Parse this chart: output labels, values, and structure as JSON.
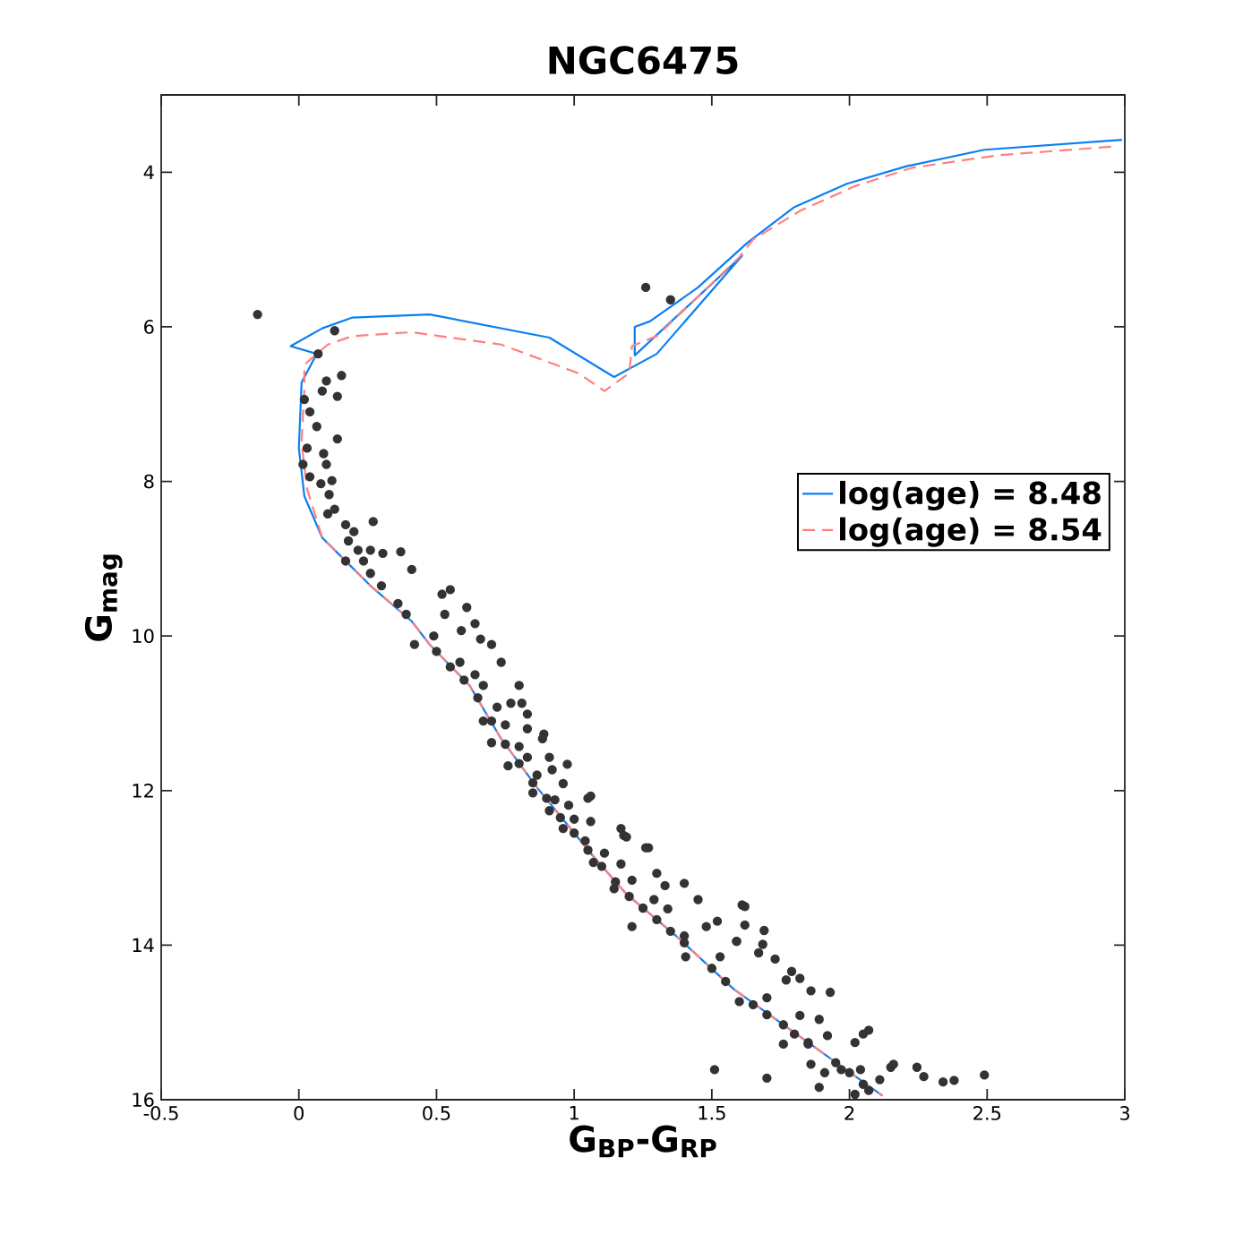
{
  "chart_data": {
    "type": "scatter",
    "title": "NGC6475",
    "xlabel": "G$_{BP}$-G$_{RP}$",
    "ylabel": "G$_{mag}$",
    "xlim": [
      -0.5,
      3
    ],
    "ylim": [
      16,
      3
    ],
    "xticks": [
      -0.5,
      0,
      0.5,
      1,
      1.5,
      2,
      2.5,
      3
    ],
    "yticks": [
      4,
      6,
      8,
      10,
      12,
      14,
      16
    ],
    "legend": "right",
    "marker": "circle",
    "series": [
      {
        "color": "#333333",
        "x": [
          -0.15,
          0.13,
          0.07,
          0.155,
          0.1,
          0.085,
          0.14,
          0.02,
          0.04,
          0.065,
          0.14,
          0.03,
          0.09,
          0.1,
          0.015,
          0.04,
          0.12,
          0.08,
          0.11,
          0.13,
          0.105,
          0.27,
          0.17,
          0.2,
          0.18,
          0.215,
          0.26,
          0.305,
          0.37,
          0.235,
          0.41,
          0.17,
          0.26,
          0.3,
          0.52,
          0.55,
          0.61,
          0.53,
          0.36,
          0.39,
          0.64,
          0.59,
          0.42,
          0.49,
          0.7,
          0.66,
          0.735,
          0.585,
          0.64,
          0.8,
          0.67,
          0.77,
          0.81,
          0.72,
          0.83,
          0.67,
          0.75,
          0.83,
          0.89,
          0.885,
          0.7,
          0.8,
          0.83,
          0.91,
          0.975,
          0.92,
          0.76,
          0.865,
          0.96,
          0.85,
          0.93,
          1.05,
          0.98,
          0.91,
          1.06,
          1.0,
          0.96,
          1.17,
          1.18,
          1.27,
          1.04,
          1.11,
          1.07,
          1.17,
          1.21,
          1.3,
          1.33,
          1.4,
          1.145,
          1.29,
          1.45,
          1.61,
          1.52,
          1.21,
          1.34,
          1.4,
          1.59,
          1.48,
          1.26,
          1.62,
          1.62,
          1.69,
          1.59,
          1.685,
          1.67,
          1.73,
          1.405,
          1.53,
          1.79,
          1.82,
          1.77,
          1.86,
          1.93,
          1.6,
          1.7,
          1.82,
          1.89,
          1.76,
          1.92,
          1.76,
          2.02,
          2.07,
          2.05,
          1.85,
          1.86,
          1.91,
          1.97,
          2.04,
          2.11,
          2.15,
          2.16,
          2.245,
          2.27,
          2.34,
          2.38,
          2.49,
          1.51,
          1.7,
          1.89,
          2.02,
          2.07,
          1.06,
          1.19,
          1.26,
          1.35,
          0.5,
          0.55,
          0.6,
          0.65,
          0.7,
          0.75,
          0.8,
          0.85,
          0.9,
          0.95,
          1.0,
          1.05,
          1.1,
          1.15,
          1.2,
          1.25,
          1.3,
          1.35,
          1.4,
          1.5,
          1.55,
          1.65,
          1.7,
          1.8,
          1.85,
          1.95,
          2.0,
          2.05
        ],
        "values": [
          5.84,
          6.05,
          6.35,
          6.63,
          6.7,
          6.83,
          6.9,
          6.94,
          7.1,
          7.29,
          7.45,
          7.57,
          7.64,
          7.78,
          7.78,
          7.94,
          7.99,
          8.03,
          8.17,
          8.36,
          8.42,
          8.52,
          8.56,
          8.65,
          8.77,
          8.89,
          8.89,
          8.93,
          8.91,
          9.03,
          9.14,
          9.03,
          9.19,
          9.35,
          9.46,
          9.4,
          9.63,
          9.72,
          9.58,
          9.72,
          9.84,
          9.93,
          10.11,
          10.0,
          10.11,
          10.04,
          10.34,
          10.34,
          10.5,
          10.64,
          10.64,
          10.87,
          10.87,
          10.92,
          11.01,
          11.1,
          11.15,
          11.2,
          11.27,
          11.33,
          11.38,
          11.43,
          11.57,
          11.57,
          11.66,
          11.73,
          11.68,
          11.8,
          11.91,
          12.03,
          12.12,
          12.1,
          12.19,
          12.26,
          12.4,
          12.37,
          12.49,
          12.49,
          12.58,
          12.74,
          12.65,
          12.81,
          12.93,
          12.95,
          13.16,
          13.07,
          13.23,
          13.2,
          13.27,
          13.41,
          13.41,
          13.48,
          13.69,
          13.76,
          13.53,
          13.88,
          13.95,
          13.76,
          12.74,
          13.5,
          13.74,
          13.81,
          13.95,
          13.99,
          14.1,
          14.18,
          14.15,
          14.15,
          14.34,
          14.43,
          14.45,
          14.59,
          14.61,
          14.73,
          14.68,
          14.91,
          14.96,
          15.03,
          15.17,
          15.28,
          15.26,
          15.1,
          15.15,
          15.26,
          15.54,
          15.65,
          15.61,
          15.61,
          15.74,
          15.58,
          15.54,
          15.58,
          15.7,
          15.77,
          15.75,
          15.68,
          15.61,
          15.72,
          15.84,
          15.93,
          15.88,
          12.07,
          12.6,
          5.49,
          5.65,
          10.2,
          10.4,
          10.57,
          10.8,
          11.1,
          11.4,
          11.65,
          11.9,
          12.1,
          12.35,
          12.55,
          12.77,
          12.98,
          13.18,
          13.37,
          13.52,
          13.67,
          13.82,
          13.97,
          14.3,
          14.47,
          14.77,
          14.9,
          15.15,
          15.28,
          15.52,
          15.65,
          15.8
        ]
      },
      {
        "type": "line",
        "name": "log(age) = 8.48",
        "color": "#0a7ff2",
        "line_style": "solid",
        "marker": "none",
        "x": [
          2.99,
          2.49,
          2.21,
          1.99,
          1.8,
          1.63,
          1.45,
          1.275,
          1.22,
          1.22,
          1.61,
          1.3,
          1.145,
          0.91,
          0.475,
          0.195,
          0.085,
          -0.03,
          0.065,
          0.01,
          0.0,
          0.02,
          0.085,
          0.15,
          0.26,
          0.41,
          0.475,
          0.62,
          0.735,
          0.865,
          1.06,
          1.19,
          1.37,
          1.58,
          2.12
        ],
        "values": [
          3.58,
          3.71,
          3.92,
          4.15,
          4.45,
          4.91,
          5.49,
          5.93,
          6.0,
          6.37,
          5.08,
          6.35,
          6.65,
          6.14,
          5.84,
          5.88,
          6.02,
          6.25,
          6.35,
          6.72,
          7.57,
          8.19,
          8.73,
          8.96,
          9.35,
          9.81,
          10.11,
          10.64,
          11.33,
          11.96,
          12.81,
          13.34,
          13.88,
          14.57,
          15.95
        ]
      },
      {
        "type": "line",
        "name": "log(age) = 8.54",
        "color": "#ff7f7f",
        "line_style": "dashed",
        "marker": "none",
        "x": [
          2.95,
          2.54,
          2.23,
          2.02,
          1.82,
          1.65,
          1.6,
          1.3,
          1.21,
          1.2,
          1.11,
          1.015,
          0.735,
          0.41,
          0.195,
          0.105,
          0.02,
          0.02,
          0.01,
          0.03,
          0.085,
          0.15,
          0.26,
          0.41,
          0.475,
          0.62,
          0.735,
          0.865,
          1.06,
          1.19,
          1.37,
          1.58,
          2.12
        ],
        "values": [
          3.67,
          3.78,
          3.94,
          4.18,
          4.5,
          4.87,
          5.1,
          6.12,
          6.25,
          6.6,
          6.83,
          6.6,
          6.23,
          6.07,
          6.12,
          6.23,
          6.49,
          6.81,
          7.5,
          8.1,
          8.73,
          8.96,
          9.35,
          9.81,
          10.11,
          10.64,
          11.33,
          11.96,
          12.81,
          13.34,
          13.88,
          14.57,
          15.95
        ]
      }
    ]
  }
}
